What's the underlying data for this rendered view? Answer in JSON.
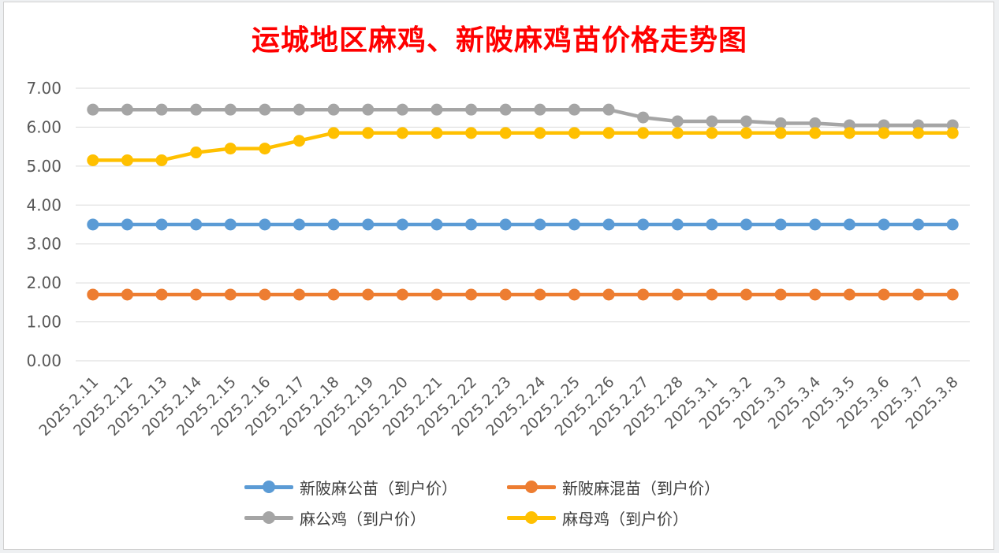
{
  "chart_data": {
    "type": "line",
    "title": "运城地区麻鸡、新陂麻鸡苗价格走势图",
    "xlabel": "",
    "ylabel": "",
    "ylim": [
      0,
      7
    ],
    "y_ticks": [
      "0.00",
      "1.00",
      "2.00",
      "3.00",
      "4.00",
      "5.00",
      "6.00",
      "7.00"
    ],
    "grid": true,
    "legend_position": "bottom",
    "categories": [
      "2025.2.11",
      "2025.2.12",
      "2025.2.13",
      "2025.2.14",
      "2025.2.15",
      "2025.2.16",
      "2025.2.17",
      "2025.2.18",
      "2025.2.19",
      "2025.2.20",
      "2025.2.21",
      "2025.2.22",
      "2025.2.23",
      "2025.2.24",
      "2025.2.25",
      "2025.2.26",
      "2025.2.27",
      "2025.2.28",
      "2025.3.1",
      "2025.3.2",
      "2025.3.3",
      "2025.3.4",
      "2025.3.5",
      "2025.3.6",
      "2025.3.7",
      "2025.3.8"
    ],
    "series": [
      {
        "name": "新陂麻公苗（到户价）",
        "color": "#5b9bd5",
        "values": [
          3.5,
          3.5,
          3.5,
          3.5,
          3.5,
          3.5,
          3.5,
          3.5,
          3.5,
          3.5,
          3.5,
          3.5,
          3.5,
          3.5,
          3.5,
          3.5,
          3.5,
          3.5,
          3.5,
          3.5,
          3.5,
          3.5,
          3.5,
          3.5,
          3.5,
          3.5
        ]
      },
      {
        "name": "新陂麻混苗（到户价）",
        "color": "#ed7d31",
        "values": [
          1.7,
          1.7,
          1.7,
          1.7,
          1.7,
          1.7,
          1.7,
          1.7,
          1.7,
          1.7,
          1.7,
          1.7,
          1.7,
          1.7,
          1.7,
          1.7,
          1.7,
          1.7,
          1.7,
          1.7,
          1.7,
          1.7,
          1.7,
          1.7,
          1.7,
          1.7
        ]
      },
      {
        "name": "麻公鸡（到户价）",
        "color": "#a5a5a5",
        "values": [
          6.45,
          6.45,
          6.45,
          6.45,
          6.45,
          6.45,
          6.45,
          6.45,
          6.45,
          6.45,
          6.45,
          6.45,
          6.45,
          6.45,
          6.45,
          6.45,
          6.25,
          6.15,
          6.15,
          6.15,
          6.1,
          6.1,
          6.05,
          6.05,
          6.05,
          6.05
        ]
      },
      {
        "name": "麻母鸡（到户价）",
        "color": "#ffc000",
        "values": [
          5.15,
          5.15,
          5.15,
          5.35,
          5.45,
          5.45,
          5.65,
          5.85,
          5.85,
          5.85,
          5.85,
          5.85,
          5.85,
          5.85,
          5.85,
          5.85,
          5.85,
          5.85,
          5.85,
          5.85,
          5.85,
          5.85,
          5.85,
          5.85,
          5.85,
          5.85
        ]
      }
    ]
  }
}
